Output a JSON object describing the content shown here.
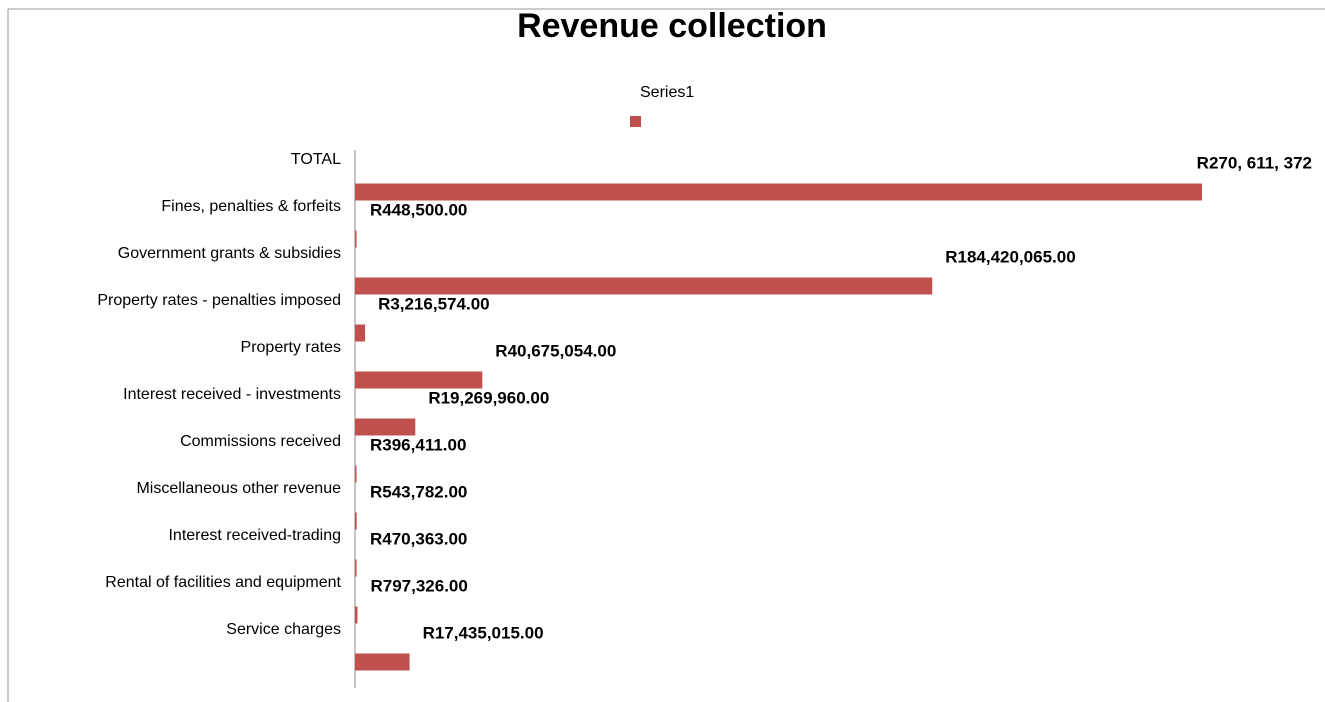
{
  "chart_data": {
    "type": "bar",
    "orientation": "horizontal",
    "title": "Revenue collection",
    "categories": [
      "TOTAL",
      "Fines, penalties & forfeits",
      "Government grants & subsidies",
      "Property rates - penalties imposed",
      "Property rates",
      "Interest received - investments",
      "Commissions received",
      "Miscellaneous other revenue",
      "Interest received-trading",
      "Rental of facilities and equipment",
      "Service charges"
    ],
    "series": [
      {
        "name": "Series1",
        "color": "#c0504d",
        "values": [
          270611372,
          448500,
          184420065,
          3216574,
          40675054,
          19269960,
          396411,
          543782,
          470363,
          797326,
          17435015
        ],
        "value_labels": [
          "R270, 611, 372",
          "R448,500.00",
          "R184,420,065.00",
          "R3,216,574.00",
          "R40,675,054.00",
          "R19,269,960.00",
          "R396,411.00",
          "R543,782.00",
          "R470,363.00",
          "R797,326.00",
          "R17,435,015.00"
        ]
      }
    ],
    "legend": "top"
  }
}
